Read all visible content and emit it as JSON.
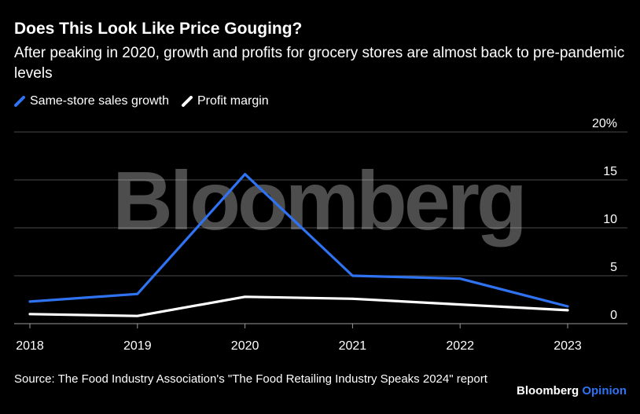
{
  "header": {
    "title": "Does This Look Like Price Gouging?",
    "subtitle": "After peaking in 2020, growth and profits for grocery stores are almost back to pre-pandemic levels"
  },
  "watermark": "Bloomberg",
  "footer": {
    "source": "Source: The Food Industry Association's \"The Food Retailing Industry Speaks 2024\" report",
    "brand_name": "Bloomberg",
    "brand_section": "Opinion"
  },
  "colors": {
    "background": "#000000",
    "accent": "#2f73f2",
    "text": "#ffffff",
    "grid": "#4a4a4a"
  },
  "chart_data": {
    "type": "line",
    "x": [
      "2018",
      "2019",
      "2020",
      "2021",
      "2022",
      "2023"
    ],
    "ylim": [
      0,
      20
    ],
    "y_ticks": [
      "0",
      "5",
      "10",
      "15",
      "20%"
    ],
    "grid": true,
    "legend_position": "top-left",
    "series": [
      {
        "name": "Same-store sales growth",
        "color": "#2f73f2",
        "values": [
          2.3,
          3.1,
          15.6,
          5.0,
          4.7,
          1.8
        ]
      },
      {
        "name": "Profit margin",
        "color": "#ffffff",
        "values": [
          1.0,
          0.8,
          2.8,
          2.6,
          2.0,
          1.4
        ]
      }
    ]
  }
}
